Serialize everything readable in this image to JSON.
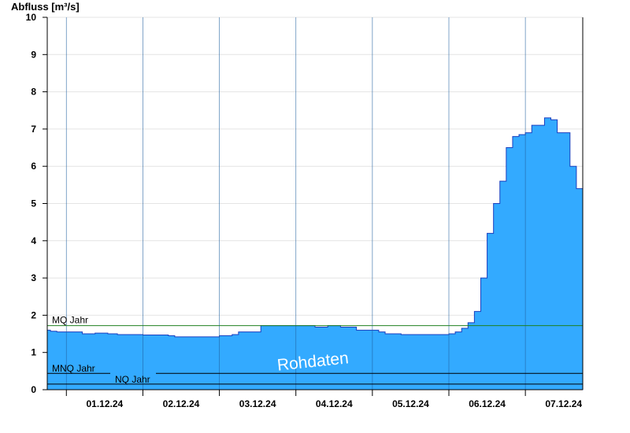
{
  "chart_data": {
    "type": "area",
    "ylabel": "Abfluss [m³/s]",
    "ylim": [
      0,
      10
    ],
    "yticks": [
      0,
      1,
      2,
      3,
      4,
      5,
      6,
      7,
      8,
      9,
      10
    ],
    "xlim": [
      "2024-11-30T18:00",
      "2024-12-07T18:00"
    ],
    "xticks": [
      {
        "label": "01.12.24",
        "at": "2024-12-01T12:00"
      },
      {
        "label": "02.12.24",
        "at": "2024-12-02T12:00"
      },
      {
        "label": "03.12.24",
        "at": "2024-12-03T12:00"
      },
      {
        "label": "04.12.24",
        "at": "2024-12-04T12:00"
      },
      {
        "label": "05.12.24",
        "at": "2024-12-05T12:00"
      },
      {
        "label": "06.12.24",
        "at": "2024-12-06T12:00"
      },
      {
        "label": "07.12.24",
        "at": "2024-12-07T12:00"
      }
    ],
    "day_lines": [
      "2024-12-01T00:00",
      "2024-12-02T00:00",
      "2024-12-03T00:00",
      "2024-12-04T00:00",
      "2024-12-05T00:00",
      "2024-12-06T00:00",
      "2024-12-07T00:00"
    ],
    "series": [
      {
        "color": "#33aaff",
        "x": [
          "2024-11-30T18:00",
          "2024-11-30T19:00",
          "2024-11-30T21:00",
          "2024-12-01T03:00",
          "2024-12-01T05:00",
          "2024-12-01T07:00",
          "2024-12-01T09:00",
          "2024-12-01T11:00",
          "2024-12-01T13:00",
          "2024-12-01T16:00",
          "2024-12-02T00:00",
          "2024-12-02T08:00",
          "2024-12-02T10:00",
          "2024-12-02T14:00",
          "2024-12-02T20:00",
          "2024-12-03T00:00",
          "2024-12-03T04:00",
          "2024-12-03T06:00",
          "2024-12-03T13:00",
          "2024-12-03T20:00",
          "2024-12-04T01:00",
          "2024-12-04T04:00",
          "2024-12-04T06:00",
          "2024-12-04T08:00",
          "2024-12-04T10:00",
          "2024-12-04T14:00",
          "2024-12-04T19:00",
          "2024-12-05T02:00",
          "2024-12-05T04:00",
          "2024-12-05T06:00",
          "2024-12-05T09:00",
          "2024-12-05T12:00",
          "2024-12-05T18:00",
          "2024-12-05T20:00",
          "2024-12-06T00:00",
          "2024-12-06T02:00",
          "2024-12-06T04:00",
          "2024-12-06T06:00",
          "2024-12-06T08:00",
          "2024-12-06T10:00",
          "2024-12-06T12:00",
          "2024-12-06T14:00",
          "2024-12-06T16:00",
          "2024-12-06T18:00",
          "2024-12-06T20:00",
          "2024-12-06T22:00",
          "2024-12-07T00:00",
          "2024-12-07T02:00",
          "2024-12-07T06:00",
          "2024-12-07T08:00",
          "2024-12-07T10:00",
          "2024-12-07T14:00",
          "2024-12-07T16:00",
          "2024-12-07T18:00"
        ],
        "y": [
          1.6,
          1.57,
          1.55,
          1.55,
          1.5,
          1.5,
          1.52,
          1.52,
          1.5,
          1.48,
          1.47,
          1.45,
          1.42,
          1.42,
          1.42,
          1.45,
          1.48,
          1.55,
          1.72,
          1.72,
          1.72,
          1.72,
          1.68,
          1.68,
          1.72,
          1.68,
          1.6,
          1.55,
          1.5,
          1.5,
          1.48,
          1.48,
          1.48,
          1.48,
          1.5,
          1.55,
          1.65,
          1.8,
          2.1,
          3.0,
          4.2,
          5.0,
          5.6,
          6.5,
          6.8,
          6.85,
          6.9,
          7.1,
          7.3,
          7.25,
          6.9,
          6.0,
          5.4,
          5.1
        ]
      }
    ],
    "reference_lines": [
      {
        "label": "MQ Jahr",
        "value": 1.72,
        "color": "#208020"
      },
      {
        "label": "MNQ Jahr",
        "value": 0.44,
        "color": "#000000"
      },
      {
        "label": "NQ Jahr",
        "value": 0.15,
        "color": "#000000"
      }
    ],
    "watermark": "Rohdaten",
    "grid": true
  }
}
